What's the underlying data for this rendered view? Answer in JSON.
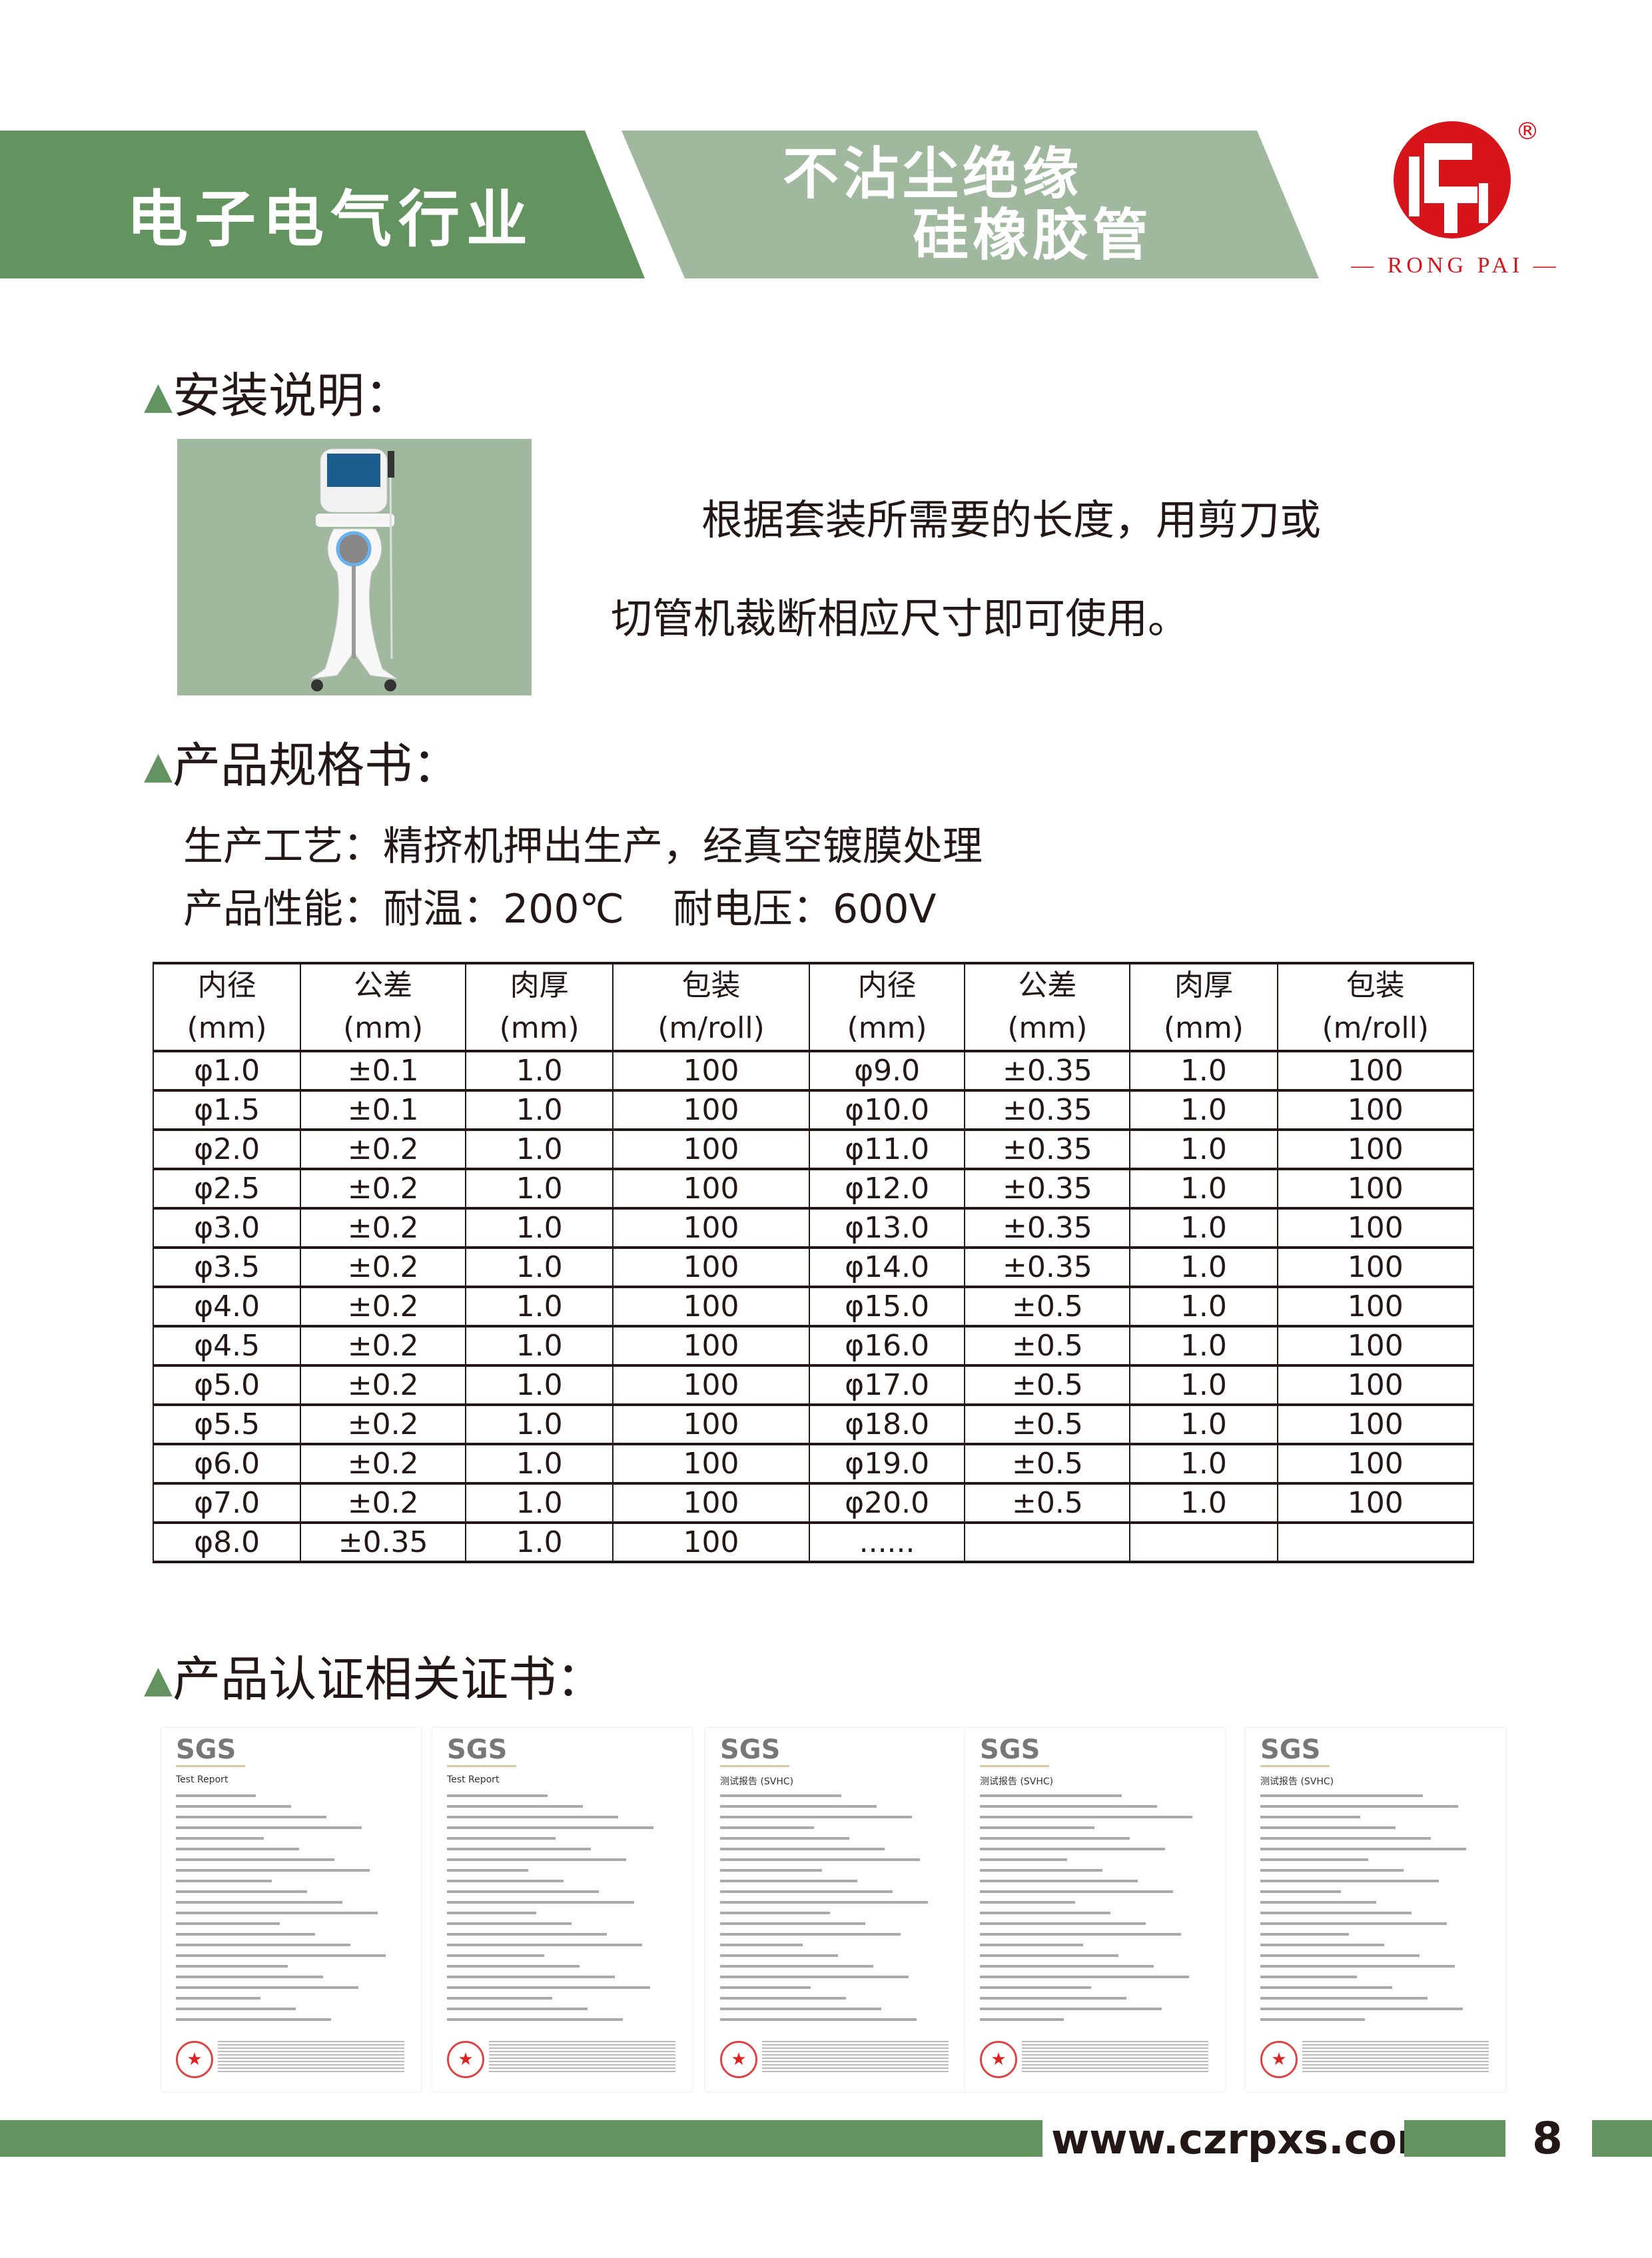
{
  "header": {
    "industry": "电子电气行业",
    "product_line1": "不沾尘绝缘",
    "product_line2": "硅橡胶管",
    "colors": {
      "dark_green": "#639460",
      "light_green": "#a0b89e",
      "brand_red": "#d7141a"
    }
  },
  "logo": {
    "brand": "RONG PAI",
    "registered": "®"
  },
  "install": {
    "heading": "安装说明：",
    "line1": "根据套装所需要的长度，用剪刀或",
    "line2": "切管机裁断相应尺寸即可使用。"
  },
  "spec": {
    "heading": "产品规格书：",
    "process": "生产工艺：精挤机押出生产，经真空镀膜处理",
    "performance": "产品性能：耐温：200℃",
    "voltage": "耐电压：600V"
  },
  "table": {
    "headers": [
      [
        "内径",
        "(mm)"
      ],
      [
        "公差",
        "(mm)"
      ],
      [
        "肉厚",
        "(mm)"
      ],
      [
        "包装",
        "(m/roll)"
      ],
      [
        "内径",
        "(mm)"
      ],
      [
        "公差",
        "(mm)"
      ],
      [
        "肉厚",
        "(mm)"
      ],
      [
        "包装",
        "(m/roll)"
      ]
    ],
    "rows": [
      [
        "φ1.0",
        "±0.1",
        "1.0",
        "100",
        "φ9.0",
        "±0.35",
        "1.0",
        "100"
      ],
      [
        "φ1.5",
        "±0.1",
        "1.0",
        "100",
        "φ10.0",
        "±0.35",
        "1.0",
        "100"
      ],
      [
        "φ2.0",
        "±0.2",
        "1.0",
        "100",
        "φ11.0",
        "±0.35",
        "1.0",
        "100"
      ],
      [
        "φ2.5",
        "±0.2",
        "1.0",
        "100",
        "φ12.0",
        "±0.35",
        "1.0",
        "100"
      ],
      [
        "φ3.0",
        "±0.2",
        "1.0",
        "100",
        "φ13.0",
        "±0.35",
        "1.0",
        "100"
      ],
      [
        "φ3.5",
        "±0.2",
        "1.0",
        "100",
        "φ14.0",
        "±0.35",
        "1.0",
        "100"
      ],
      [
        "φ4.0",
        "±0.2",
        "1.0",
        "100",
        "φ15.0",
        "±0.5",
        "1.0",
        "100"
      ],
      [
        "φ4.5",
        "±0.2",
        "1.0",
        "100",
        "φ16.0",
        "±0.5",
        "1.0",
        "100"
      ],
      [
        "φ5.0",
        "±0.2",
        "1.0",
        "100",
        "φ17.0",
        "±0.5",
        "1.0",
        "100"
      ],
      [
        "φ5.5",
        "±0.2",
        "1.0",
        "100",
        "φ18.0",
        "±0.5",
        "1.0",
        "100"
      ],
      [
        "φ6.0",
        "±0.2",
        "1.0",
        "100",
        "φ19.0",
        "±0.5",
        "1.0",
        "100"
      ],
      [
        "φ7.0",
        "±0.2",
        "1.0",
        "100",
        "φ20.0",
        "±0.5",
        "1.0",
        "100"
      ],
      [
        "φ8.0",
        "±0.35",
        "1.0",
        "100",
        "......",
        "",
        "",
        ""
      ]
    ]
  },
  "certs": {
    "heading": "产品认证相关证书：",
    "items": [
      {
        "logo": "SGS",
        "title": "Test Report"
      },
      {
        "logo": "SGS",
        "title": "Test Report"
      },
      {
        "logo": "SGS",
        "title": "测试报告 (SVHC)"
      },
      {
        "logo": "SGS",
        "title": "测试报告 (SVHC)"
      },
      {
        "logo": "SGS",
        "title": "测试报告 (SVHC)"
      }
    ]
  },
  "footer": {
    "website": "www.czrpxs.com",
    "page": "8"
  }
}
